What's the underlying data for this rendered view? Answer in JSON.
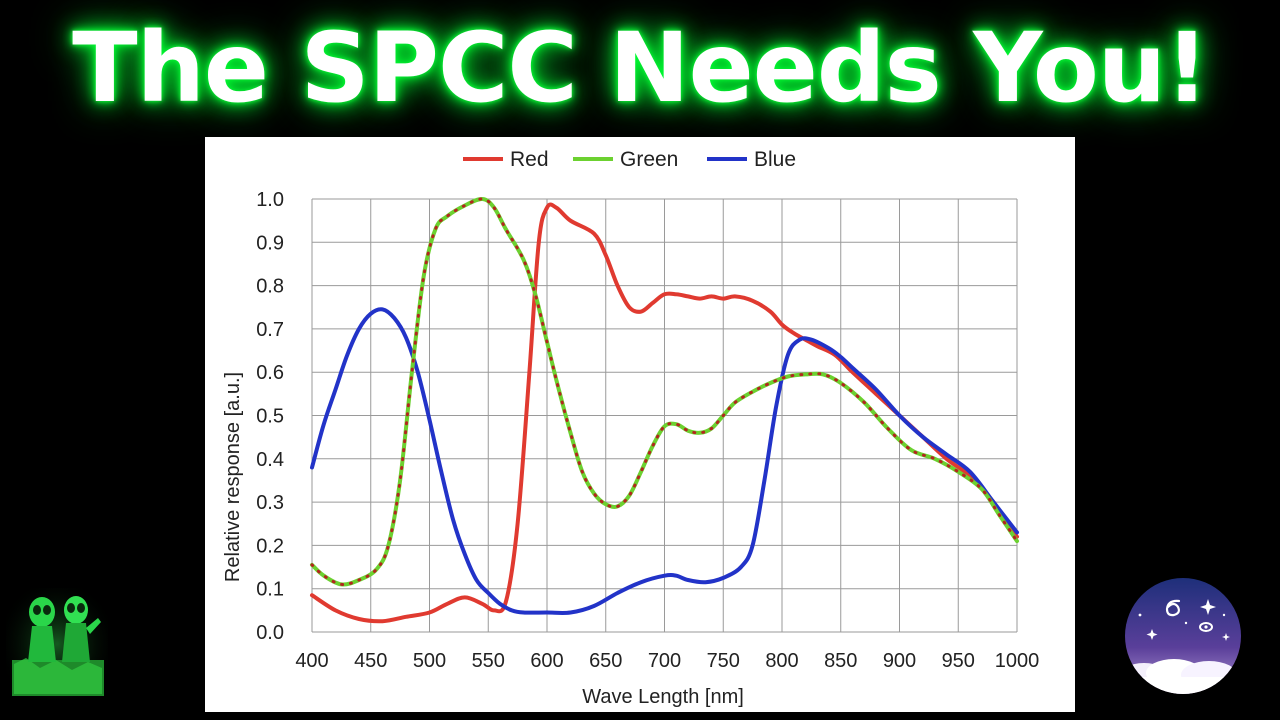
{
  "headline": "The SPCC Needs You!",
  "chart_data": {
    "type": "line",
    "title": "",
    "xlabel": "Wave Length [nm]",
    "ylabel": "Relative response [a.u.]",
    "xlim": [
      400,
      1000
    ],
    "ylim": [
      0.0,
      1.0
    ],
    "xticks": [
      "400",
      "450",
      "500",
      "550",
      "600",
      "650",
      "700",
      "750",
      "800",
      "850",
      "900",
      "950",
      "1000"
    ],
    "yticks": [
      "0.0",
      "0.1",
      "0.2",
      "0.3",
      "0.4",
      "0.5",
      "0.6",
      "0.7",
      "0.8",
      "0.9",
      "1.0"
    ],
    "grid": true,
    "legend_position": "top-center",
    "series": [
      {
        "name": "Red",
        "color": "#e03a30",
        "points": [
          [
            400,
            0.085
          ],
          [
            420,
            0.05
          ],
          [
            440,
            0.03
          ],
          [
            460,
            0.025
          ],
          [
            480,
            0.035
          ],
          [
            500,
            0.045
          ],
          [
            515,
            0.065
          ],
          [
            530,
            0.08
          ],
          [
            545,
            0.065
          ],
          [
            555,
            0.05
          ],
          [
            565,
            0.07
          ],
          [
            575,
            0.25
          ],
          [
            585,
            0.6
          ],
          [
            593,
            0.9
          ],
          [
            600,
            0.98
          ],
          [
            608,
            0.98
          ],
          [
            620,
            0.95
          ],
          [
            640,
            0.92
          ],
          [
            650,
            0.87
          ],
          [
            660,
            0.8
          ],
          [
            670,
            0.75
          ],
          [
            680,
            0.74
          ],
          [
            690,
            0.76
          ],
          [
            700,
            0.78
          ],
          [
            710,
            0.78
          ],
          [
            720,
            0.775
          ],
          [
            730,
            0.77
          ],
          [
            740,
            0.775
          ],
          [
            750,
            0.77
          ],
          [
            760,
            0.775
          ],
          [
            775,
            0.765
          ],
          [
            790,
            0.74
          ],
          [
            800,
            0.71
          ],
          [
            810,
            0.69
          ],
          [
            820,
            0.675
          ],
          [
            830,
            0.66
          ],
          [
            845,
            0.64
          ],
          [
            860,
            0.6
          ],
          [
            880,
            0.55
          ],
          [
            900,
            0.5
          ],
          [
            920,
            0.45
          ],
          [
            940,
            0.4
          ],
          [
            960,
            0.36
          ],
          [
            980,
            0.3
          ],
          [
            1000,
            0.22
          ]
        ]
      },
      {
        "name": "Green",
        "color": "#6cd130",
        "points": [
          [
            400,
            0.155
          ],
          [
            410,
            0.13
          ],
          [
            425,
            0.11
          ],
          [
            440,
            0.12
          ],
          [
            455,
            0.145
          ],
          [
            465,
            0.2
          ],
          [
            475,
            0.35
          ],
          [
            485,
            0.6
          ],
          [
            495,
            0.82
          ],
          [
            505,
            0.93
          ],
          [
            515,
            0.96
          ],
          [
            530,
            0.985
          ],
          [
            545,
            1.0
          ],
          [
            555,
            0.98
          ],
          [
            565,
            0.93
          ],
          [
            580,
            0.86
          ],
          [
            590,
            0.78
          ],
          [
            600,
            0.67
          ],
          [
            610,
            0.56
          ],
          [
            620,
            0.46
          ],
          [
            630,
            0.37
          ],
          [
            640,
            0.32
          ],
          [
            650,
            0.295
          ],
          [
            660,
            0.29
          ],
          [
            670,
            0.315
          ],
          [
            680,
            0.37
          ],
          [
            690,
            0.43
          ],
          [
            700,
            0.475
          ],
          [
            710,
            0.48
          ],
          [
            720,
            0.465
          ],
          [
            730,
            0.46
          ],
          [
            740,
            0.47
          ],
          [
            750,
            0.5
          ],
          [
            760,
            0.53
          ],
          [
            775,
            0.555
          ],
          [
            790,
            0.575
          ],
          [
            805,
            0.59
          ],
          [
            820,
            0.595
          ],
          [
            835,
            0.595
          ],
          [
            850,
            0.575
          ],
          [
            870,
            0.53
          ],
          [
            890,
            0.47
          ],
          [
            910,
            0.42
          ],
          [
            930,
            0.4
          ],
          [
            950,
            0.37
          ],
          [
            970,
            0.33
          ],
          [
            985,
            0.27
          ],
          [
            1000,
            0.21
          ]
        ]
      },
      {
        "name": "Blue",
        "color": "#2233c8",
        "points": [
          [
            400,
            0.38
          ],
          [
            410,
            0.48
          ],
          [
            420,
            0.56
          ],
          [
            430,
            0.64
          ],
          [
            440,
            0.7
          ],
          [
            450,
            0.735
          ],
          [
            460,
            0.745
          ],
          [
            470,
            0.725
          ],
          [
            480,
            0.68
          ],
          [
            490,
            0.6
          ],
          [
            500,
            0.49
          ],
          [
            510,
            0.37
          ],
          [
            520,
            0.26
          ],
          [
            530,
            0.18
          ],
          [
            540,
            0.12
          ],
          [
            550,
            0.09
          ],
          [
            560,
            0.065
          ],
          [
            570,
            0.05
          ],
          [
            580,
            0.045
          ],
          [
            600,
            0.045
          ],
          [
            620,
            0.045
          ],
          [
            640,
            0.06
          ],
          [
            660,
            0.09
          ],
          [
            680,
            0.115
          ],
          [
            700,
            0.13
          ],
          [
            710,
            0.13
          ],
          [
            720,
            0.12
          ],
          [
            735,
            0.115
          ],
          [
            750,
            0.125
          ],
          [
            765,
            0.15
          ],
          [
            775,
            0.2
          ],
          [
            785,
            0.35
          ],
          [
            795,
            0.52
          ],
          [
            805,
            0.64
          ],
          [
            815,
            0.675
          ],
          [
            825,
            0.675
          ],
          [
            840,
            0.655
          ],
          [
            850,
            0.635
          ],
          [
            860,
            0.61
          ],
          [
            880,
            0.56
          ],
          [
            900,
            0.5
          ],
          [
            920,
            0.45
          ],
          [
            940,
            0.41
          ],
          [
            960,
            0.37
          ],
          [
            980,
            0.3
          ],
          [
            1000,
            0.23
          ]
        ]
      }
    ]
  },
  "decor": {
    "alien_art": "two-green-alien-figures",
    "space_badge": "spiral-galaxy-night-sky-logo"
  }
}
